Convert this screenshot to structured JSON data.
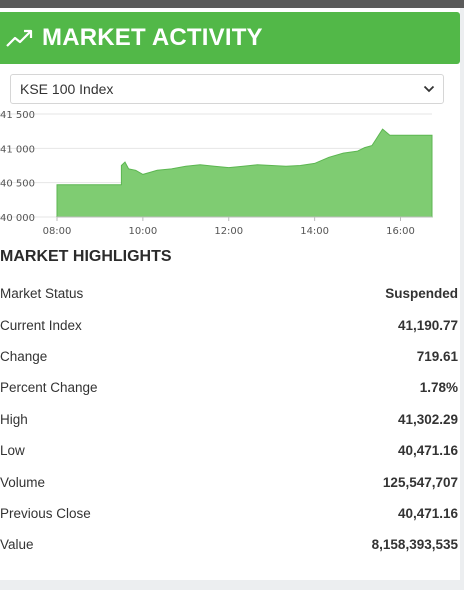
{
  "header": {
    "title": "MARKET ACTIVITY",
    "icon": "trending-up-icon",
    "color": "#52b848"
  },
  "index_select": {
    "selected": "KSE 100 Index"
  },
  "chart_data": {
    "type": "area",
    "title": "",
    "xlabel": "",
    "ylabel": "",
    "color": "#7fcc72",
    "x_ticks": [
      "08:00",
      "10:00",
      "12:00",
      "14:00",
      "16:00"
    ],
    "y_ticks": [
      "41 500",
      "41 000",
      "40 500",
      "40 000"
    ],
    "ylim": [
      40000,
      41500
    ],
    "xlim": [
      "08:00",
      "16:45"
    ],
    "x": [
      "08:00",
      "09:30",
      "09:30",
      "09:35",
      "09:40",
      "09:50",
      "10:00",
      "10:10",
      "10:20",
      "10:40",
      "11:00",
      "11:20",
      "11:40",
      "12:00",
      "12:20",
      "12:40",
      "13:00",
      "13:20",
      "13:40",
      "14:00",
      "14:20",
      "14:40",
      "15:00",
      "15:10",
      "15:20",
      "15:25",
      "15:30",
      "15:35",
      "15:45",
      "16:00",
      "16:45"
    ],
    "values": [
      40471,
      40471,
      40750,
      40800,
      40700,
      40680,
      40620,
      40650,
      40680,
      40700,
      40740,
      40760,
      40740,
      40720,
      40740,
      40760,
      40750,
      40740,
      40750,
      40780,
      40870,
      40930,
      40960,
      41010,
      41040,
      41120,
      41200,
      41280,
      41190,
      41190,
      41190
    ]
  },
  "highlights": {
    "title": "MARKET HIGHLIGHTS",
    "rows": [
      {
        "label": "Market Status",
        "value": "Suspended"
      },
      {
        "label": "Current Index",
        "value": "41,190.77"
      },
      {
        "label": "Change",
        "value": "719.61"
      },
      {
        "label": "Percent Change",
        "value": "1.78%"
      },
      {
        "label": "High",
        "value": "41,302.29"
      },
      {
        "label": "Low",
        "value": "40,471.16"
      },
      {
        "label": "Volume",
        "value": "125,547,707"
      },
      {
        "label": "Previous Close",
        "value": "40,471.16"
      },
      {
        "label": "Value",
        "value": "8,158,393,535"
      }
    ]
  }
}
